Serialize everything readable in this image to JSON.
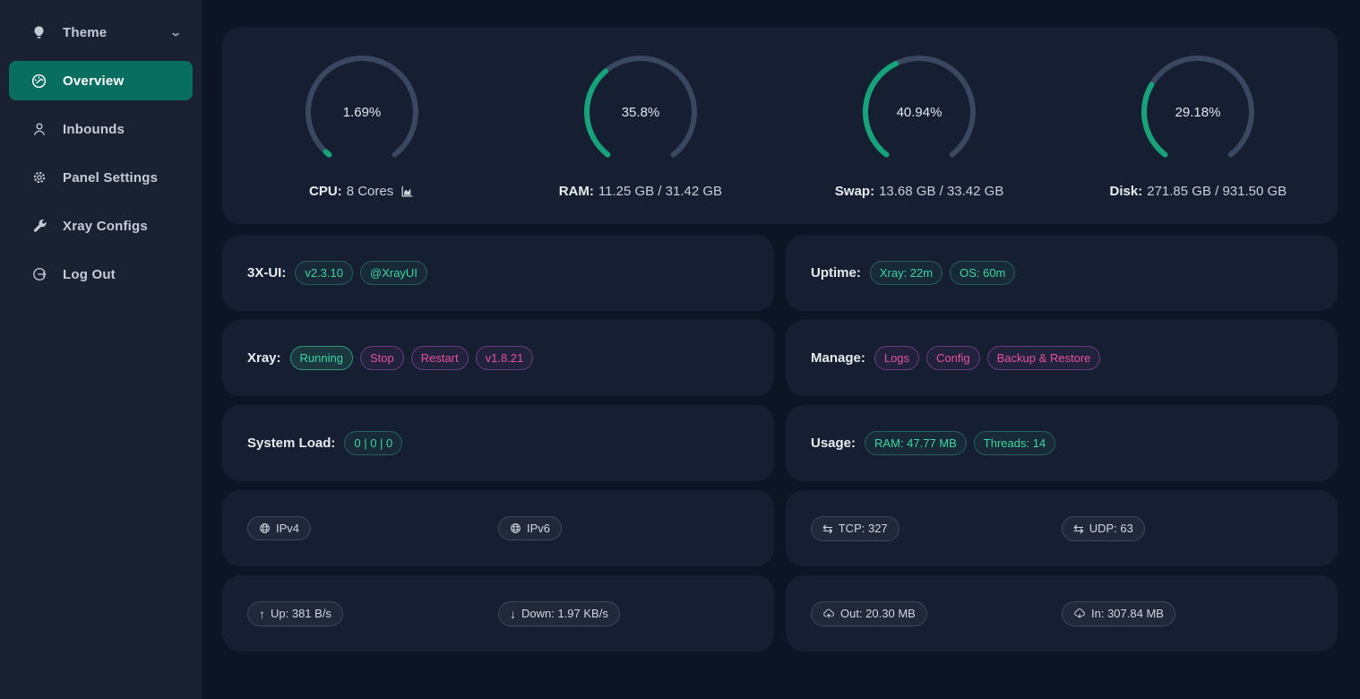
{
  "colors": {
    "accent_green": "#17a37a",
    "gauge_track": "#3a4760",
    "active_menu_green": "#086e5f",
    "tag_pink": "#e8519f",
    "sidebar_bg": "#1a2232",
    "card_bg": "#161f31",
    "page_bg": "#0d1524"
  },
  "sidebar": {
    "items": [
      {
        "label": "Theme",
        "icon": "bulb-icon",
        "chevron": true,
        "active": false
      },
      {
        "label": "Overview",
        "icon": "dashboard-icon",
        "chevron": false,
        "active": true
      },
      {
        "label": "Inbounds",
        "icon": "user-icon",
        "chevron": false,
        "active": false
      },
      {
        "label": "Panel Settings",
        "icon": "gear-icon",
        "chevron": false,
        "active": false
      },
      {
        "label": "Xray Configs",
        "icon": "wrench-icon",
        "chevron": false,
        "active": false
      },
      {
        "label": "Log Out",
        "icon": "logout-icon",
        "chevron": false,
        "active": false
      }
    ]
  },
  "gauges": [
    {
      "key": "cpu",
      "percent": "1.69%",
      "value": 1.69,
      "label_bold": "CPU:",
      "label_rest": "8 Cores",
      "chart_icon": true
    },
    {
      "key": "ram",
      "percent": "35.8%",
      "value": 35.8,
      "label_bold": "RAM:",
      "label_rest": "11.25 GB / 31.42 GB",
      "chart_icon": false
    },
    {
      "key": "swap",
      "percent": "40.94%",
      "value": 40.94,
      "label_bold": "Swap:",
      "label_rest": "13.68 GB / 33.42 GB",
      "chart_icon": false
    },
    {
      "key": "disk",
      "percent": "29.18%",
      "value": 29.18,
      "label_bold": "Disk:",
      "label_rest": "271.85 GB / 931.50 GB",
      "chart_icon": false
    }
  ],
  "rows": [
    {
      "left": {
        "name": "panel-info-card",
        "label": "3X-UI:",
        "tags": [
          {
            "name": "panel-version-tag",
            "text": "v2.3.10",
            "style": "green",
            "interactable": true
          },
          {
            "name": "telegram-channel-tag",
            "text": "@XrayUI",
            "style": "green",
            "interactable": true
          }
        ]
      },
      "right": {
        "name": "uptime-card",
        "label": "Uptime:",
        "tags": [
          {
            "name": "xray-uptime-tag",
            "text": "Xray: 22m",
            "style": "green",
            "interactable": false
          },
          {
            "name": "os-uptime-tag",
            "text": "OS: 60m",
            "style": "green",
            "interactable": false
          }
        ]
      }
    },
    {
      "left": {
        "name": "xray-control-card",
        "label": "Xray:",
        "tags": [
          {
            "name": "xray-status-tag",
            "text": "Running",
            "style": "green-strong",
            "interactable": false
          },
          {
            "name": "xray-stop-button",
            "text": "Stop",
            "style": "pink",
            "interactable": true
          },
          {
            "name": "xray-restart-button",
            "text": "Restart",
            "style": "pink",
            "interactable": true
          },
          {
            "name": "xray-version-tag",
            "text": "v1.8.21",
            "style": "pink",
            "interactable": true
          }
        ]
      },
      "right": {
        "name": "manage-card",
        "label": "Manage:",
        "tags": [
          {
            "name": "logs-button",
            "text": "Logs",
            "style": "pink",
            "interactable": true
          },
          {
            "name": "config-button",
            "text": "Config",
            "style": "pink",
            "interactable": true
          },
          {
            "name": "backup-restore-button",
            "text": "Backup & Restore",
            "style": "pink",
            "interactable": true
          }
        ]
      }
    },
    {
      "left": {
        "name": "system-load-card",
        "label": "System Load:",
        "tags": [
          {
            "name": "system-load-tag",
            "text": "0 | 0 | 0",
            "style": "green",
            "interactable": false
          }
        ]
      },
      "right": {
        "name": "usage-card",
        "label": "Usage:",
        "tags": [
          {
            "name": "ram-usage-tag",
            "text": "RAM: 47.77 MB",
            "style": "green",
            "interactable": false
          },
          {
            "name": "threads-tag",
            "text": "Threads: 14",
            "style": "green",
            "interactable": false
          }
        ]
      }
    },
    {
      "left": {
        "name": "ip-card",
        "spread": true,
        "tags": [
          {
            "name": "ipv4-tag",
            "icon": "globe-icon",
            "text": "IPv4",
            "style": "gray",
            "interactable": true
          },
          {
            "name": "ipv6-tag",
            "icon": "globe-icon",
            "text": "IPv6",
            "style": "gray",
            "interactable": true
          }
        ]
      },
      "right": {
        "name": "connections-card",
        "spread": true,
        "tags": [
          {
            "name": "tcp-count-tag",
            "icon": "swap-icon",
            "text": "TCP: 327",
            "style": "gray",
            "interactable": false
          },
          {
            "name": "udp-count-tag",
            "icon": "swap-icon",
            "text": "UDP: 63",
            "style": "gray",
            "interactable": false
          }
        ]
      }
    },
    {
      "left": {
        "name": "speed-card",
        "spread": true,
        "tags": [
          {
            "name": "upload-speed-tag",
            "icon": "arrow-up-icon",
            "text": "Up: 381 B/s",
            "style": "gray",
            "interactable": false
          },
          {
            "name": "download-speed-tag",
            "icon": "arrow-down-icon",
            "text": "Down: 1.97 KB/s",
            "style": "gray",
            "interactable": false
          }
        ]
      },
      "right": {
        "name": "traffic-card",
        "spread": true,
        "tags": [
          {
            "name": "traffic-out-tag",
            "icon": "cloud-upload-icon",
            "text": "Out: 20.30 MB",
            "style": "gray",
            "interactable": false
          },
          {
            "name": "traffic-in-tag",
            "icon": "cloud-download-icon",
            "text": "In: 307.84 MB",
            "style": "gray",
            "interactable": false
          }
        ]
      }
    }
  ]
}
